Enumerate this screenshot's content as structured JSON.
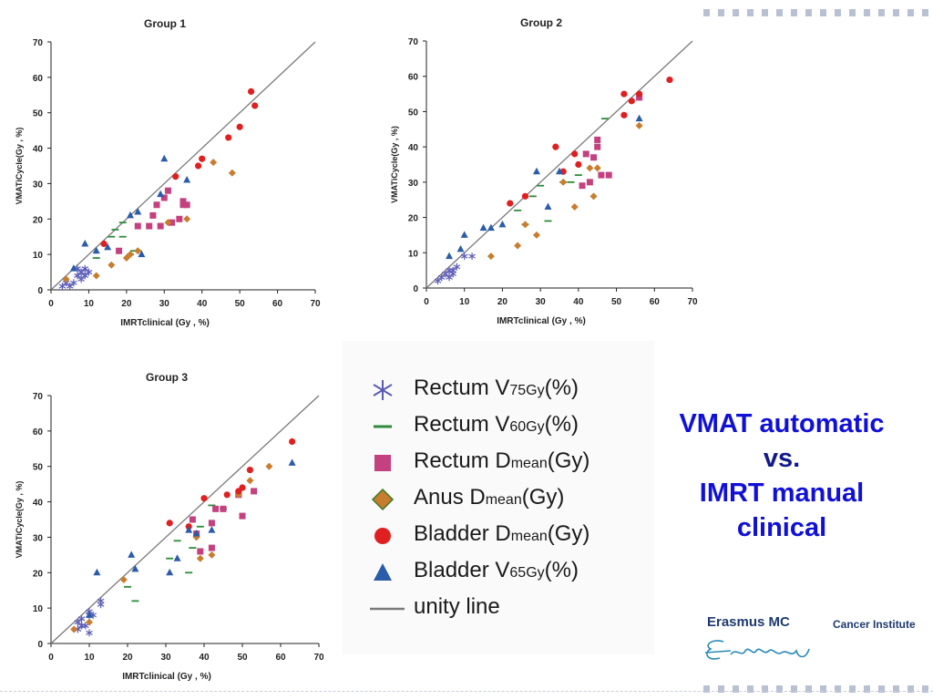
{
  "colors": {
    "rectum_v75": "#5a5ab8",
    "rectum_v60": "#2e8b3a",
    "rectum_dmean": "#c4407e",
    "anus_dmean": "#c87d2e",
    "bladder_dmean": "#e02020",
    "bladder_v65": "#2a5caa",
    "unity": "#7a7a7a",
    "headline": "#1010d8"
  },
  "legend": {
    "items": [
      {
        "key": "rectum_v75",
        "icon": "asterisk-icon",
        "base": "Rectum V",
        "sub": "75Gy",
        "tail": "(%)"
      },
      {
        "key": "rectum_v60",
        "icon": "dash-icon",
        "base": "Rectum V",
        "sub": "60Gy",
        "tail": "(%)"
      },
      {
        "key": "rectum_dmean",
        "icon": "square-icon",
        "base": "Rectum D",
        "sub": "mean",
        "tail": "(Gy)"
      },
      {
        "key": "anus_dmean",
        "icon": "diamond-icon",
        "base": "Anus D",
        "sub": "mean",
        "tail": "(Gy)"
      },
      {
        "key": "bladder_dmean",
        "icon": "circle-icon",
        "base": "Bladder D",
        "sub": "mean",
        "tail": "(Gy)"
      },
      {
        "key": "bladder_v65",
        "icon": "triangle-icon",
        "base": "Bladder V",
        "sub": "65Gy",
        "tail": "(%)"
      },
      {
        "key": "unity",
        "icon": "line-icon",
        "base": "unity line",
        "sub": "",
        "tail": ""
      }
    ]
  },
  "headline": {
    "line1": "VMAT automatic",
    "line2": "vs.",
    "line3": "IMRT manual",
    "line4": "clinical"
  },
  "logo": {
    "name": "Erasmus MC",
    "institute": "Cancer Institute"
  },
  "chart_data": [
    {
      "type": "scatter",
      "title": "Group 1",
      "xlabel": "IMRTclinical (Gy , %)",
      "ylabel": "VMATiCycle(Gy , %)",
      "xlim": [
        0,
        70
      ],
      "ylim": [
        0,
        70
      ],
      "ticks": [
        "0",
        "10",
        "20",
        "30",
        "40",
        "50",
        "60",
        "70"
      ],
      "unity_line": true,
      "series": [
        {
          "key": "rectum_v75",
          "points": [
            [
              3,
              1
            ],
            [
              4,
              2
            ],
            [
              5,
              1
            ],
            [
              6,
              2
            ],
            [
              7,
              4
            ],
            [
              7,
              6
            ],
            [
              8,
              3
            ],
            [
              8,
              5
            ],
            [
              9,
              6
            ],
            [
              9,
              4
            ],
            [
              10,
              5
            ]
          ]
        },
        {
          "key": "rectum_v60",
          "points": [
            [
              12,
              9
            ],
            [
              16,
              15
            ],
            [
              17,
              17
            ],
            [
              19,
              15
            ],
            [
              19,
              19
            ],
            [
              21,
              10
            ],
            [
              22,
              11
            ],
            [
              23,
              11
            ]
          ]
        },
        {
          "key": "rectum_dmean",
          "points": [
            [
              18,
              11
            ],
            [
              23,
              18
            ],
            [
              26,
              18
            ],
            [
              27,
              21
            ],
            [
              28,
              24
            ],
            [
              29,
              18
            ],
            [
              30,
              26
            ],
            [
              31,
              28
            ],
            [
              32,
              19
            ],
            [
              34,
              20
            ],
            [
              35,
              25
            ],
            [
              35,
              24
            ],
            [
              36,
              24
            ]
          ]
        },
        {
          "key": "anus_dmean",
          "points": [
            [
              4,
              3
            ],
            [
              12,
              4
            ],
            [
              16,
              7
            ],
            [
              20,
              9
            ],
            [
              21,
              10
            ],
            [
              23,
              11
            ],
            [
              31,
              19
            ],
            [
              36,
              20
            ],
            [
              43,
              36
            ],
            [
              48,
              33
            ]
          ]
        },
        {
          "key": "bladder_dmean",
          "points": [
            [
              14,
              13
            ],
            [
              33,
              32
            ],
            [
              39,
              35
            ],
            [
              40,
              37
            ],
            [
              47,
              43
            ],
            [
              50,
              46
            ],
            [
              53,
              56
            ],
            [
              54,
              52
            ]
          ]
        },
        {
          "key": "bladder_v65",
          "points": [
            [
              6,
              6
            ],
            [
              9,
              13
            ],
            [
              12,
              11
            ],
            [
              15,
              12
            ],
            [
              21,
              21
            ],
            [
              23,
              22
            ],
            [
              24,
              10
            ],
            [
              29,
              27
            ],
            [
              30,
              37
            ],
            [
              36,
              31
            ]
          ]
        }
      ]
    },
    {
      "type": "scatter",
      "title": "Group 2",
      "xlabel": "IMRTclinical (Gy , %)",
      "ylabel": "VMATiCycle(Gy , %)",
      "xlim": [
        0,
        70
      ],
      "ylim": [
        0,
        70
      ],
      "ticks": [
        "0",
        "10",
        "20",
        "30",
        "40",
        "50",
        "60",
        "70"
      ],
      "unity_line": true,
      "series": [
        {
          "key": "rectum_v75",
          "points": [
            [
              3,
              2
            ],
            [
              4,
              3
            ],
            [
              5,
              4
            ],
            [
              6,
              5
            ],
            [
              6,
              3
            ],
            [
              7,
              4
            ],
            [
              7,
              5
            ],
            [
              8,
              6
            ],
            [
              10,
              9
            ],
            [
              12,
              9
            ]
          ]
        },
        {
          "key": "rectum_v60",
          "points": [
            [
              24,
              22
            ],
            [
              26,
              18
            ],
            [
              28,
              26
            ],
            [
              30,
              29
            ],
            [
              32,
              19
            ],
            [
              36,
              30
            ],
            [
              38,
              30
            ],
            [
              40,
              32
            ],
            [
              47,
              48
            ]
          ]
        },
        {
          "key": "rectum_dmean",
          "points": [
            [
              41,
              29
            ],
            [
              42,
              38
            ],
            [
              43,
              30
            ],
            [
              44,
              37
            ],
            [
              45,
              42
            ],
            [
              45,
              40
            ],
            [
              46,
              32
            ],
            [
              48,
              32
            ],
            [
              56,
              54
            ]
          ]
        },
        {
          "key": "anus_dmean",
          "points": [
            [
              17,
              9
            ],
            [
              24,
              12
            ],
            [
              26,
              18
            ],
            [
              29,
              15
            ],
            [
              36,
              30
            ],
            [
              39,
              23
            ],
            [
              43,
              34
            ],
            [
              44,
              26
            ],
            [
              45,
              34
            ],
            [
              56,
              46
            ]
          ]
        },
        {
          "key": "bladder_dmean",
          "points": [
            [
              22,
              24
            ],
            [
              26,
              26
            ],
            [
              34,
              40
            ],
            [
              36,
              33
            ],
            [
              39,
              38
            ],
            [
              40,
              35
            ],
            [
              52,
              55
            ],
            [
              52,
              49
            ],
            [
              54,
              53
            ],
            [
              56,
              55
            ],
            [
              64,
              59
            ]
          ]
        },
        {
          "key": "bladder_v65",
          "points": [
            [
              6,
              9
            ],
            [
              9,
              11
            ],
            [
              10,
              15
            ],
            [
              15,
              17
            ],
            [
              17,
              17
            ],
            [
              20,
              18
            ],
            [
              29,
              33
            ],
            [
              32,
              23
            ],
            [
              35,
              33
            ],
            [
              56,
              48
            ]
          ]
        }
      ]
    },
    {
      "type": "scatter",
      "title": "Group 3",
      "xlabel": "IMRTclinical (Gy , %)",
      "ylabel": "VMATiCycle(Gy , %)",
      "xlim": [
        0,
        70
      ],
      "ylim": [
        0,
        70
      ],
      "ticks": [
        "0",
        "10",
        "20",
        "30",
        "40",
        "50",
        "60",
        "70"
      ],
      "unity_line": true,
      "series": [
        {
          "key": "rectum_v75",
          "points": [
            [
              7,
              4
            ],
            [
              7,
              6
            ],
            [
              8,
              5
            ],
            [
              8,
              7
            ],
            [
              9,
              5
            ],
            [
              10,
              3
            ],
            [
              10,
              8
            ],
            [
              10,
              9
            ],
            [
              11,
              8
            ],
            [
              13,
              11
            ],
            [
              13,
              12
            ]
          ]
        },
        {
          "key": "rectum_v60",
          "points": [
            [
              20,
              16
            ],
            [
              22,
              12
            ],
            [
              31,
              24
            ],
            [
              33,
              29
            ],
            [
              36,
              20
            ],
            [
              37,
              27
            ],
            [
              39,
              33
            ],
            [
              42,
              39
            ],
            [
              45,
              38
            ]
          ]
        },
        {
          "key": "rectum_dmean",
          "points": [
            [
              37,
              35
            ],
            [
              38,
              31
            ],
            [
              39,
              26
            ],
            [
              42,
              27
            ],
            [
              42,
              34
            ],
            [
              43,
              38
            ],
            [
              45,
              38
            ],
            [
              49,
              42
            ],
            [
              50,
              36
            ],
            [
              53,
              43
            ]
          ]
        },
        {
          "key": "anus_dmean",
          "points": [
            [
              6,
              4
            ],
            [
              10,
              6
            ],
            [
              19,
              18
            ],
            [
              38,
              30
            ],
            [
              39,
              24
            ],
            [
              42,
              25
            ],
            [
              49,
              42
            ],
            [
              52,
              46
            ],
            [
              57,
              50
            ]
          ]
        },
        {
          "key": "bladder_dmean",
          "points": [
            [
              31,
              34
            ],
            [
              36,
              33
            ],
            [
              40,
              41
            ],
            [
              46,
              42
            ],
            [
              49,
              43
            ],
            [
              50,
              44
            ],
            [
              52,
              49
            ],
            [
              63,
              57
            ]
          ]
        },
        {
          "key": "bladder_v65",
          "points": [
            [
              10,
              8
            ],
            [
              12,
              20
            ],
            [
              21,
              25
            ],
            [
              22,
              21
            ],
            [
              31,
              20
            ],
            [
              33,
              24
            ],
            [
              36,
              32
            ],
            [
              38,
              31
            ],
            [
              42,
              32
            ],
            [
              63,
              51
            ]
          ]
        }
      ]
    }
  ]
}
